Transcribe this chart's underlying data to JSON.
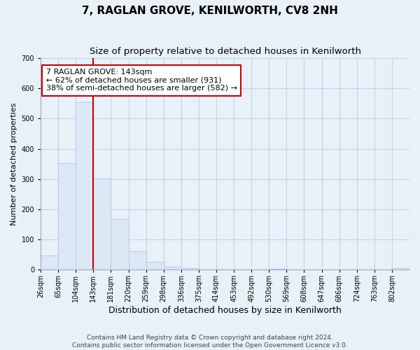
{
  "title": "7, RAGLAN GROVE, KENILWORTH, CV8 2NH",
  "subtitle": "Size of property relative to detached houses in Kenilworth",
  "xlabel": "Distribution of detached houses by size in Kenilworth",
  "ylabel": "Number of detached properties",
  "bin_labels": [
    "26sqm",
    "65sqm",
    "104sqm",
    "143sqm",
    "181sqm",
    "220sqm",
    "259sqm",
    "298sqm",
    "336sqm",
    "375sqm",
    "414sqm",
    "453sqm",
    "492sqm",
    "530sqm",
    "569sqm",
    "608sqm",
    "647sqm",
    "686sqm",
    "724sqm",
    "763sqm",
    "802sqm"
  ],
  "bar_heights": [
    47,
    352,
    554,
    302,
    168,
    60,
    25,
    10,
    5,
    0,
    0,
    0,
    0,
    3,
    0,
    0,
    0,
    0,
    0,
    0,
    5
  ],
  "bar_color": "#dce9f5",
  "bar_edge_color": "#b0cce8",
  "vline_x_index": 3,
  "vline_color": "#cc0000",
  "annotation_line1": "7 RAGLAN GROVE: 143sqm",
  "annotation_line2": "← 62% of detached houses are smaller (931)",
  "annotation_line3": "38% of semi-detached houses are larger (582) →",
  "annotation_box_color": "#ffffff",
  "annotation_box_edge": "#cc0000",
  "bg_color": "#e8f0f8",
  "plot_bg_color": "#e8f0f8",
  "ylim": [
    0,
    700
  ],
  "yticks": [
    0,
    100,
    200,
    300,
    400,
    500,
    600,
    700
  ],
  "footer_text": "Contains HM Land Registry data © Crown copyright and database right 2024.\nContains public sector information licensed under the Open Government Licence v3.0.",
  "title_fontsize": 11,
  "subtitle_fontsize": 9.5,
  "xlabel_fontsize": 9,
  "ylabel_fontsize": 8,
  "tick_fontsize": 7,
  "footer_fontsize": 6.5,
  "annot_fontsize": 8
}
